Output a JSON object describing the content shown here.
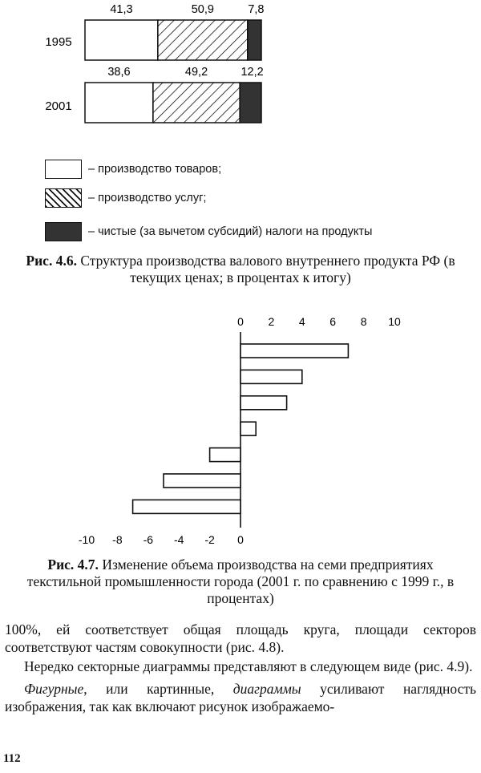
{
  "figure1": {
    "chart_data": {
      "type": "bar",
      "stacked": true,
      "orientation": "horizontal",
      "categories": [
        "1995",
        "2001"
      ],
      "series": [
        {
          "name": "– производство товаров;",
          "values": [
            41.3,
            38.6
          ],
          "value_labels": [
            "41,3",
            "38,6"
          ],
          "fill": "white"
        },
        {
          "name": "– производство услуг;",
          "values": [
            50.9,
            49.2
          ],
          "value_labels": [
            "50,9",
            "49,2"
          ],
          "fill": "hatched"
        },
        {
          "name": "– чистые (за вычетом субсидий) налоги на продукты",
          "values": [
            7.8,
            12.2
          ],
          "value_labels": [
            "7,8",
            "12,2"
          ],
          "fill": "#333333"
        }
      ]
    },
    "caption_label": "Рис. 4.6.",
    "caption_text": "Структура производства валового внутреннего продукта РФ (в текущих ценах; в процентах к итогу)"
  },
  "figure2": {
    "chart_data": {
      "type": "bar",
      "orientation": "horizontal",
      "values": [
        7,
        4,
        3,
        1,
        -2,
        -5,
        -7
      ],
      "xlim": [
        -10,
        10
      ],
      "top_ticks": [
        "0",
        "2",
        "4",
        "6",
        "8",
        "10"
      ],
      "bottom_ticks": [
        "-10",
        "-8",
        "-6",
        "-4",
        "-2",
        "0"
      ]
    },
    "caption_label": "Рис. 4.7.",
    "caption_text": "Изменение объема производства на семи предприятиях текстильной промышленности города (2001 г. по сравнению с 1999 г., в процентах)"
  },
  "text": {
    "p1": "100%, ей соответствует общая площадь круга, площади секторов соответствуют частям совокупности (рис. 4.8).",
    "p2": "Нередко секторные диаграммы представляют в следующем виде (рис. 4.9).",
    "p3_italic1": "Фигурные",
    "p3_a": ", или картинные, ",
    "p3_italic2": "диаграммы",
    "p3_b": " усиливают наглядность изображения, так как включают рисунок изображаемо-"
  },
  "page_number": "112"
}
